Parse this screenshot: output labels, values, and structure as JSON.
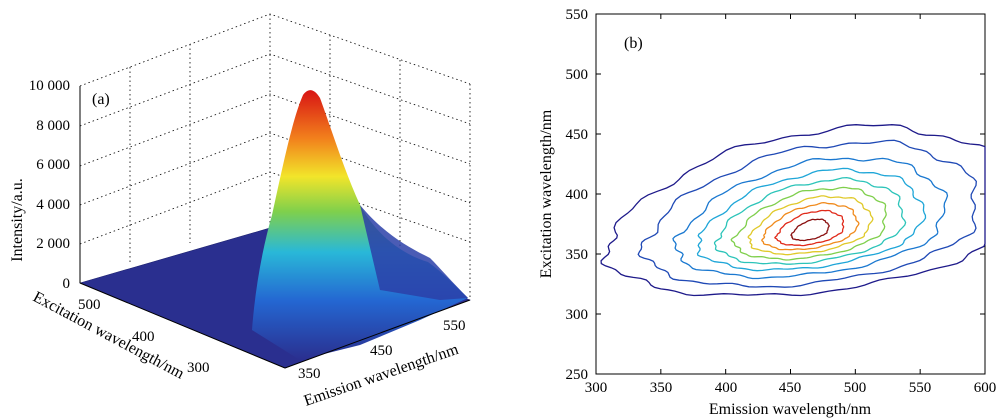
{
  "chart_data": [
    {
      "type": "surface",
      "panel_label": "(a)",
      "zlabel": "Intensity/a.u.",
      "ylabel": "Excitation wavelength/nm",
      "xlabel": "Emission wavelength/nm",
      "z_ticks": [
        "0",
        "2 000",
        "4 000",
        "6 000",
        "8 000",
        "10 000"
      ],
      "y_ticks": [
        "300",
        "400",
        "500"
      ],
      "x_ticks": [
        "350",
        "450",
        "550"
      ],
      "zlim": [
        0,
        10000
      ],
      "colormap": "jet",
      "floor_color": "#2a2f8f",
      "peak": {
        "emission": 470,
        "excitation": 365,
        "intensity": 9500
      }
    },
    {
      "type": "contour",
      "panel_label": "(b)",
      "xlabel": "Emission wavelength/nm",
      "ylabel": "Excitation wavelength/nm",
      "x_ticks": [
        "300",
        "350",
        "400",
        "450",
        "500",
        "550",
        "600"
      ],
      "y_ticks": [
        "250",
        "300",
        "350",
        "400",
        "450",
        "500",
        "550"
      ],
      "xlim": [
        300,
        600
      ],
      "ylim": [
        250,
        550
      ],
      "center": {
        "emission": 465,
        "excitation": 368
      },
      "levels": [
        {
          "color": "#1e1a8a",
          "rx": 150,
          "ry": 88
        },
        {
          "color": "#1f49b5",
          "rx": 122,
          "ry": 75
        },
        {
          "color": "#1a78d0",
          "rx": 98,
          "ry": 62
        },
        {
          "color": "#1fa6d8",
          "rx": 82,
          "ry": 52
        },
        {
          "color": "#2cc4b9",
          "rx": 68,
          "ry": 44
        },
        {
          "color": "#7fcf4c",
          "rx": 55,
          "ry": 37
        },
        {
          "color": "#e0c92a",
          "rx": 44,
          "ry": 30
        },
        {
          "color": "#f08a1c",
          "rx": 34,
          "ry": 24
        },
        {
          "color": "#e02a1a",
          "rx": 24,
          "ry": 18
        },
        {
          "color": "#8a1010",
          "rx": 13,
          "ry": 11
        }
      ]
    }
  ]
}
